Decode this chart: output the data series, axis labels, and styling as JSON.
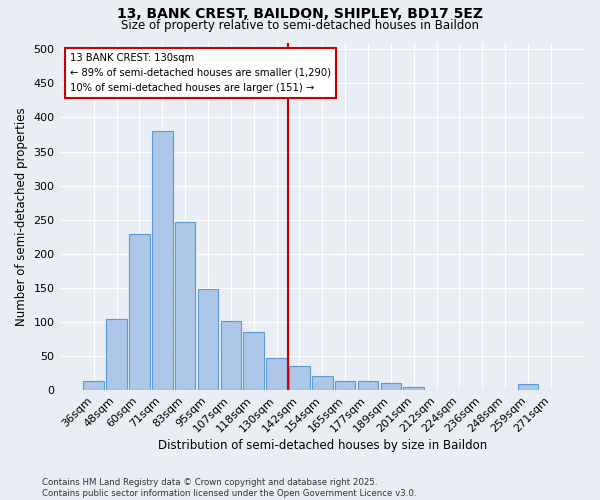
{
  "title": "13, BANK CREST, BAILDON, SHIPLEY, BD17 5EZ",
  "subtitle": "Size of property relative to semi-detached houses in Baildon",
  "xlabel": "Distribution of semi-detached houses by size in Baildon",
  "ylabel": "Number of semi-detached properties",
  "footer_line1": "Contains HM Land Registry data © Crown copyright and database right 2025.",
  "footer_line2": "Contains public sector information licensed under the Open Government Licence v3.0.",
  "categories": [
    "36sqm",
    "48sqm",
    "60sqm",
    "71sqm",
    "83sqm",
    "95sqm",
    "107sqm",
    "118sqm",
    "130sqm",
    "142sqm",
    "154sqm",
    "165sqm",
    "177sqm",
    "189sqm",
    "201sqm",
    "212sqm",
    "224sqm",
    "236sqm",
    "248sqm",
    "259sqm",
    "271sqm"
  ],
  "values": [
    13,
    104,
    229,
    380,
    246,
    148,
    102,
    85,
    47,
    36,
    20,
    14,
    13,
    11,
    5,
    0,
    0,
    0,
    0,
    9,
    0
  ],
  "bar_color": "#aec6e8",
  "bar_edge_color": "#5b9bd5",
  "background_color": "#e8eef4",
  "vline_x": 8.5,
  "vline_color": "#cc0000",
  "annotation_title": "13 BANK CREST: 130sqm",
  "annotation_line1": "← 89% of semi-detached houses are smaller (1,290)",
  "annotation_line2": "10% of semi-detached houses are larger (151) →",
  "annotation_box_color": "#cc0000",
  "ylim": [
    0,
    510
  ],
  "yticks": [
    0,
    50,
    100,
    150,
    200,
    250,
    300,
    350,
    400,
    450,
    500
  ]
}
